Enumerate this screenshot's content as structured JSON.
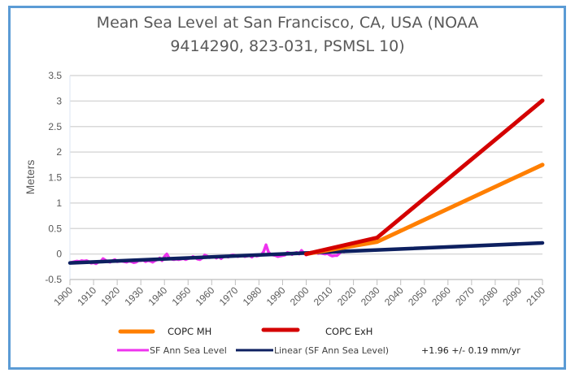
{
  "chart_data": {
    "type": "line",
    "title_lines": [
      "Mean Sea Level at San Francisco, CA, USA  (NOAA",
      "9414290, 823-031, PSMSL 10)"
    ],
    "xlabel": "",
    "ylabel": "Meters",
    "xlim": [
      1900,
      2100
    ],
    "ylim": [
      -0.5,
      3.5
    ],
    "x_ticks": [
      "1900",
      "1910",
      "1920",
      "1930",
      "1940",
      "1950",
      "1960",
      "1970",
      "1980",
      "1990",
      "2000",
      "2010",
      "2020",
      "2030",
      "2040",
      "2050",
      "2060",
      "2070",
      "2080",
      "2090",
      "2100"
    ],
    "y_ticks": [
      "3.5",
      "3",
      "2.5",
      "2",
      "1.5",
      "1",
      "0.5",
      "0",
      "-0.5"
    ],
    "grid": "horizontal",
    "legend_placement": "bottom",
    "series": [
      {
        "name": "COPC MH",
        "color": "#ff7f00",
        "x": [
          2000,
          2030,
          2100
        ],
        "y": [
          0.0,
          0.24,
          1.75
        ]
      },
      {
        "name": "COPC ExH",
        "color": "#d40000",
        "x": [
          2000,
          2030,
          2100
        ],
        "y": [
          0.0,
          0.32,
          3.01
        ]
      },
      {
        "name": "SF Ann Sea Level",
        "color": "#ee33ee",
        "x": [
          1900,
          1901,
          1902,
          1903,
          1904,
          1905,
          1906,
          1907,
          1908,
          1909,
          1910,
          1911,
          1912,
          1913,
          1914,
          1915,
          1916,
          1917,
          1918,
          1919,
          1920,
          1921,
          1922,
          1923,
          1924,
          1925,
          1926,
          1927,
          1928,
          1929,
          1930,
          1931,
          1932,
          1933,
          1934,
          1935,
          1936,
          1937,
          1938,
          1939,
          1940,
          1941,
          1942,
          1943,
          1944,
          1945,
          1946,
          1947,
          1948,
          1949,
          1950,
          1951,
          1952,
          1953,
          1954,
          1955,
          1956,
          1957,
          1958,
          1959,
          1960,
          1961,
          1962,
          1963,
          1964,
          1965,
          1966,
          1967,
          1968,
          1969,
          1970,
          1971,
          1972,
          1973,
          1974,
          1975,
          1976,
          1977,
          1978,
          1979,
          1980,
          1981,
          1982,
          1983,
          1984,
          1985,
          1986,
          1987,
          1988,
          1989,
          1990,
          1991,
          1992,
          1993,
          1994,
          1995,
          1996,
          1997,
          1998,
          1999,
          2000,
          2001,
          2002,
          2003,
          2004,
          2005,
          2006,
          2007,
          2008,
          2009,
          2010,
          2011,
          2012,
          2013,
          2014,
          2015,
          2016
        ],
        "y": [
          -0.17,
          -0.16,
          -0.15,
          -0.14,
          -0.15,
          -0.13,
          -0.14,
          -0.13,
          -0.15,
          -0.18,
          -0.17,
          -0.19,
          -0.16,
          -0.15,
          -0.09,
          -0.12,
          -0.15,
          -0.16,
          -0.13,
          -0.11,
          -0.15,
          -0.14,
          -0.14,
          -0.15,
          -0.16,
          -0.14,
          -0.15,
          -0.17,
          -0.16,
          -0.13,
          -0.13,
          -0.12,
          -0.15,
          -0.13,
          -0.14,
          -0.16,
          -0.13,
          -0.11,
          -0.08,
          -0.13,
          -0.05,
          0.0,
          -0.08,
          -0.1,
          -0.11,
          -0.1,
          -0.11,
          -0.1,
          -0.09,
          -0.11,
          -0.09,
          -0.08,
          -0.05,
          -0.07,
          -0.1,
          -0.11,
          -0.08,
          -0.02,
          -0.04,
          -0.07,
          -0.06,
          -0.05,
          -0.08,
          -0.05,
          -0.09,
          -0.05,
          -0.04,
          -0.06,
          -0.03,
          -0.02,
          -0.03,
          -0.05,
          -0.04,
          -0.03,
          -0.05,
          -0.04,
          -0.03,
          -0.06,
          -0.02,
          -0.04,
          -0.03,
          -0.02,
          0.05,
          0.18,
          0.04,
          -0.01,
          -0.02,
          -0.03,
          -0.05,
          -0.04,
          -0.03,
          -0.02,
          0.03,
          0.02,
          -0.01,
          0.02,
          0.03,
          0.0,
          0.07,
          0.02,
          -0.02,
          0.0,
          0.01,
          0.02,
          0.03,
          0.01,
          0.02,
          0.01,
          0.0,
          0.01,
          -0.02,
          -0.04,
          -0.03,
          -0.03,
          0.01,
          0.06,
          0.04
        ]
      },
      {
        "name": "Linear (SF Ann Sea Level)",
        "color": "#0d2060",
        "x": [
          1900,
          2100
        ],
        "y": [
          -0.175,
          0.217
        ]
      }
    ],
    "annotations": [
      "+1.96 +/-  0.19 mm/yr"
    ]
  }
}
